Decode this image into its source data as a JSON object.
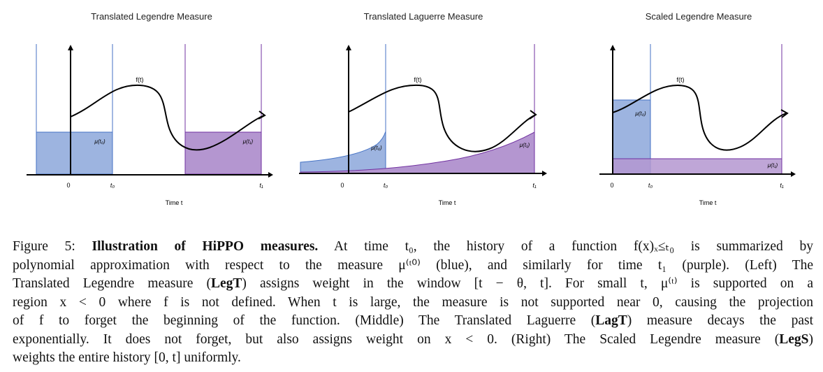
{
  "panels": [
    {
      "title": "Translated Legendre Measure",
      "func_label": "f(t)",
      "mu0_label": "μ(t₀)",
      "mu1_label": "μ(t₁)",
      "tick_zero": "0",
      "tick_t0": "t₀",
      "tick_t1": "t₁",
      "xlabel": "Time t"
    },
    {
      "title": "Translated Laguerre Measure",
      "func_label": "f(t)",
      "mu0_label": "μ(t₀)",
      "mu1_label": "μ(t₁)",
      "tick_zero": "0",
      "tick_t0": "t₀",
      "tick_t1": "t₁",
      "xlabel": "Time t"
    },
    {
      "title": "Scaled Legendre Measure",
      "func_label": "f(t)",
      "mu0_label": "μ(t₀)",
      "mu1_label": "μ(t₁)",
      "tick_zero": "0",
      "tick_t0": "t₀",
      "tick_t1": "t₁",
      "xlabel": "Time t"
    }
  ],
  "colors": {
    "blue_fill": "#9db4e0",
    "blue_line": "#4472c4",
    "purple_fill": "#b496d0",
    "purple_line": "#7030a0",
    "axis": "#111111"
  },
  "caption": {
    "figure_label": "Figure 5:",
    "bold_title": "Illustration of HiPPO measures.",
    "line1_rest": "At time t₀, the history of a function f(x)ₓ≤ₜ₀ is summarized by",
    "line2": "polynomial approximation with respect to the measure μ⁽ᵗ⁰⁾ (blue), and similarly for time t₁ (purple). (Left) The",
    "line3_a": "Translated Legendre measure (",
    "legt": "LegT",
    "line3_b": ") assigns weight in the window [t − θ, t]. For small t, μ⁽ᵗ⁾ is supported on a",
    "line4": "region x < 0 where f is not defined. When t is large, the measure is not supported near 0, causing the projection",
    "line5_a": "of f to forget the beginning of the function. (Middle) The Translated Laguerre (",
    "lagt": "LagT",
    "line5_b": ") measure decays the past",
    "line6_a": "exponentially. It does not forget, but also assigns weight on x < 0. (Right) The Scaled Legendre measure (",
    "legs": "LegS",
    "line6_b": ")",
    "line7": "weights the entire history [0, t] uniformly."
  }
}
